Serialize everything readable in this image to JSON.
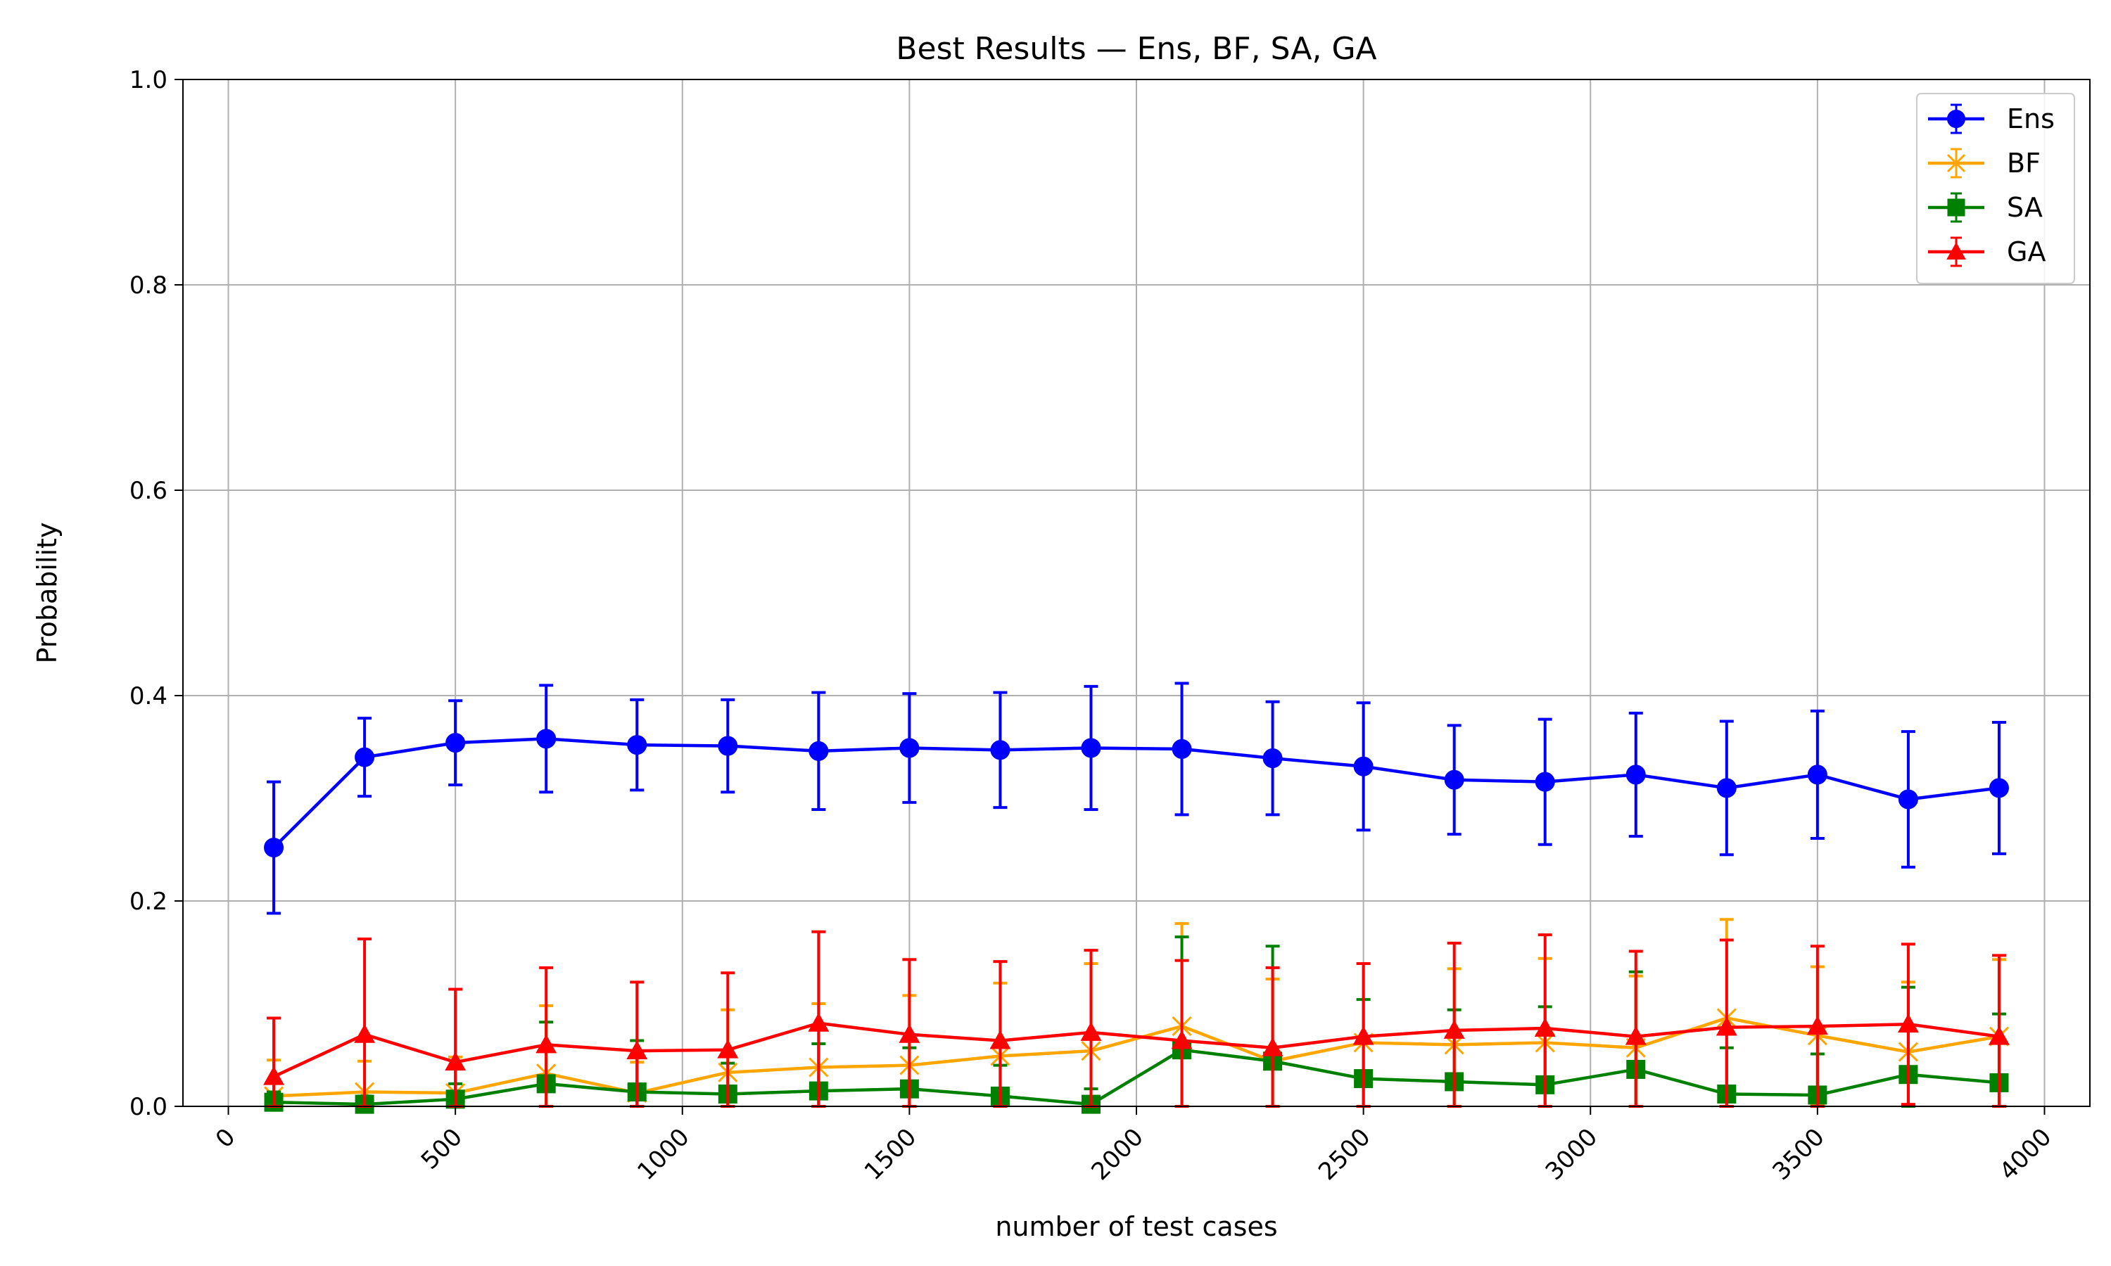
{
  "chart_data": {
    "type": "line",
    "title": "Best Results — Ens, BF, SA, GA",
    "xlabel": "number of test cases",
    "ylabel": "Probability",
    "xlim": [
      -100,
      4100
    ],
    "ylim": [
      0,
      1.0
    ],
    "xticks": [
      0,
      500,
      1000,
      1500,
      2000,
      2500,
      3000,
      3500,
      4000
    ],
    "xtick_labels": [
      "0",
      "500",
      "1000",
      "1500",
      "2000",
      "2500",
      "3000",
      "3500",
      "4000"
    ],
    "yticks": [
      0.0,
      0.2,
      0.4,
      0.6,
      0.8,
      1.0
    ],
    "ytick_labels": [
      "0.0",
      "0.2",
      "0.4",
      "0.6",
      "0.8",
      "1.0"
    ],
    "grid": true,
    "legend_position": "top-right",
    "x": [
      100,
      300,
      500,
      700,
      900,
      1100,
      1300,
      1500,
      1700,
      1900,
      2100,
      2300,
      2500,
      2700,
      2900,
      3100,
      3300,
      3500,
      3700,
      3900
    ],
    "series": [
      {
        "name": "Ens",
        "color": "#0000ff",
        "marker": "circle",
        "values": [
          0.252,
          0.34,
          0.354,
          0.358,
          0.352,
          0.351,
          0.346,
          0.349,
          0.347,
          0.349,
          0.348,
          0.339,
          0.331,
          0.318,
          0.316,
          0.323,
          0.31,
          0.323,
          0.299,
          0.31
        ],
        "err": [
          0.064,
          0.038,
          0.041,
          0.052,
          0.044,
          0.045,
          0.057,
          0.053,
          0.056,
          0.06,
          0.064,
          0.055,
          0.062,
          0.053,
          0.061,
          0.06,
          0.065,
          0.062,
          0.066,
          0.064
        ]
      },
      {
        "name": "BF",
        "color": "#ffa500",
        "marker": "x",
        "values": [
          0.01,
          0.014,
          0.013,
          0.032,
          0.013,
          0.033,
          0.038,
          0.04,
          0.049,
          0.054,
          0.078,
          0.044,
          0.062,
          0.06,
          0.062,
          0.057,
          0.086,
          0.069,
          0.053,
          0.068
        ],
        "err": [
          0.035,
          0.03,
          0.035,
          0.066,
          0.03,
          0.061,
          0.062,
          0.068,
          0.071,
          0.085,
          0.1,
          0.08,
          0.077,
          0.074,
          0.082,
          0.07,
          0.096,
          0.067,
          0.068,
          0.075
        ]
      },
      {
        "name": "SA",
        "color": "#008000",
        "marker": "square",
        "values": [
          0.004,
          0.002,
          0.007,
          0.022,
          0.014,
          0.012,
          0.015,
          0.017,
          0.01,
          0.002,
          0.055,
          0.044,
          0.027,
          0.024,
          0.021,
          0.036,
          0.012,
          0.011,
          0.031,
          0.023
        ],
        "err": [
          0.01,
          0.008,
          0.015,
          0.06,
          0.05,
          0.03,
          0.046,
          0.04,
          0.03,
          0.015,
          0.11,
          0.112,
          0.077,
          0.07,
          0.076,
          0.095,
          0.045,
          0.04,
          0.085,
          0.067
        ]
      },
      {
        "name": "GA",
        "color": "#ff0000",
        "marker": "triangle",
        "values": [
          0.029,
          0.07,
          0.043,
          0.06,
          0.054,
          0.055,
          0.081,
          0.07,
          0.064,
          0.072,
          0.064,
          0.057,
          0.068,
          0.074,
          0.076,
          0.068,
          0.077,
          0.078,
          0.08,
          0.068
        ],
        "err": [
          0.057,
          0.093,
          0.071,
          0.075,
          0.067,
          0.075,
          0.089,
          0.073,
          0.077,
          0.08,
          0.078,
          0.078,
          0.071,
          0.085,
          0.091,
          0.083,
          0.085,
          0.078,
          0.078,
          0.079
        ]
      }
    ]
  }
}
